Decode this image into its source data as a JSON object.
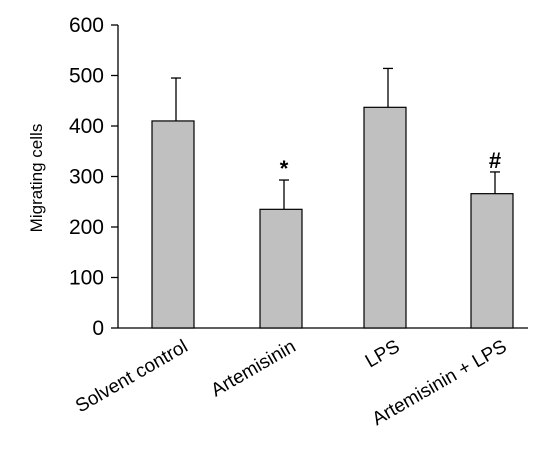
{
  "chart_data": {
    "type": "bar",
    "title": "",
    "xlabel": "",
    "ylabel": "Migrating cells",
    "ylim": [
      0,
      600
    ],
    "yticks": [
      "0",
      "100",
      "200",
      "300",
      "400",
      "500",
      "600"
    ],
    "categories": [
      "Solvent control",
      "Artemisinin",
      "LPS",
      "Artemisinin + LPS"
    ],
    "values": [
      410,
      235,
      437,
      266
    ],
    "errors": [
      85,
      58,
      77,
      43
    ],
    "annotations": [
      "",
      "*",
      "",
      "#"
    ],
    "bar_color": "#c0c0c0",
    "edge_color": "#000000",
    "grid": false,
    "legend": "none"
  }
}
